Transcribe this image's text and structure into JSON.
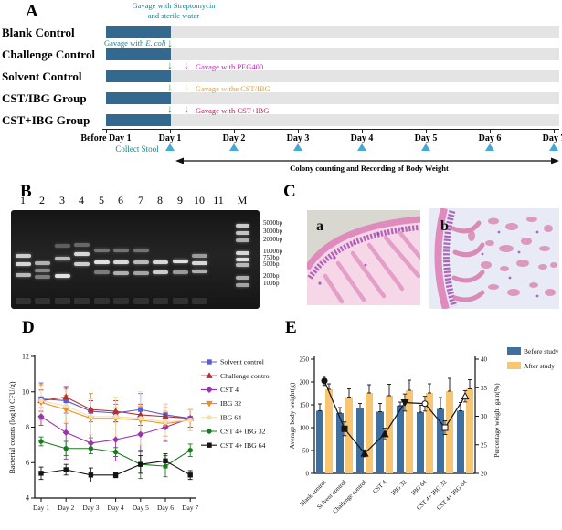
{
  "panelA": {
    "label": "A",
    "groups": [
      "Blank Control",
      "Challenge Control",
      "Solvent Control",
      "CST/IBG Group",
      "CST+IBG Group"
    ],
    "timeline_labels": [
      "Before Day 1",
      "Day 1",
      "Day 2",
      "Day 3",
      "Day 4",
      "Day 5",
      "Day 6",
      "Day 7"
    ],
    "ann_strep_1": "Gavage with Streptomycin",
    "ann_strep_2": "and sterile water",
    "ann_ecoli_prefix": "Gavage with ",
    "ann_ecoli_species": "E. coli",
    "ann_peg": "Gavage with PEG400",
    "ann_cst_slash": "Gavage withe CST/IBG",
    "ann_cst_plus": "Gavage with CST+IBG",
    "collect_stool": "Collect Stool",
    "bottom_caption": "Colony counting and Recording of Body Weight",
    "colors": {
      "bar": "#33688f",
      "track": "#e4e4e4",
      "teal": "#1b7f8c",
      "green": "#1fa03c",
      "magenta": "#c818c8",
      "orange": "#d8a23c",
      "crimson": "#c01456",
      "triangle": "#45a8d8"
    }
  },
  "panelB": {
    "label": "B",
    "lane_labels": [
      "1",
      "2",
      "3",
      "4",
      "5",
      "6",
      "7",
      "8",
      "9",
      "10",
      "11",
      "M"
    ],
    "lane_centers": [
      13,
      34,
      56,
      77,
      99,
      120,
      142,
      163,
      185,
      206,
      227,
      253
    ],
    "bands": [
      [
        [
          48,
          0.85
        ],
        [
          57,
          0.9
        ],
        [
          69,
          0.75
        ]
      ],
      [
        [
          56,
          0.7
        ],
        [
          64,
          0.5
        ],
        [
          71,
          0.45
        ]
      ],
      [
        [
          37,
          0.3
        ],
        [
          51,
          0.75
        ],
        [
          70,
          0.95
        ]
      ],
      [
        [
          36,
          0.35
        ],
        [
          46,
          0.9
        ],
        [
          57,
          0.85
        ]
      ],
      [
        [
          42,
          0.4
        ],
        [
          55,
          0.95
        ],
        [
          66,
          0.45
        ]
      ],
      [
        [
          42,
          0.4
        ],
        [
          55,
          0.9
        ],
        [
          67,
          0.7
        ]
      ],
      [
        [
          42,
          0.4
        ],
        [
          55,
          0.75
        ],
        [
          67,
          0.65
        ]
      ],
      [
        [
          55,
          0.9
        ],
        [
          66,
          0.85
        ]
      ],
      [
        [
          54,
          0.95
        ],
        [
          66,
          0.6
        ]
      ],
      [
        [
          48,
          0.6
        ],
        [
          56,
          0.9
        ],
        [
          65,
          0.7
        ]
      ],
      [],
      [
        [
          15,
          0.85
        ],
        [
          23,
          0.8
        ],
        [
          31,
          0.7
        ],
        [
          45,
          0.9
        ],
        [
          52,
          0.95
        ],
        [
          58,
          0.75
        ],
        [
          72,
          0.7
        ],
        [
          80,
          0.65
        ]
      ]
    ],
    "ladder_labels": [
      "5000bp",
      "3000bp",
      "2000bp",
      "1000bp",
      "750bp",
      "500bp",
      "200bp",
      "100bp"
    ],
    "ladder_label_tops": [
      240,
      249,
      258,
      271,
      278,
      285,
      298,
      306
    ]
  },
  "panelC": {
    "label": "C",
    "sub_a": "a",
    "sub_b": "b"
  },
  "panelD": {
    "label": "D"
  },
  "panelE": {
    "label": "E"
  },
  "chart_data": [
    {
      "panel": "D",
      "type": "line",
      "x_categories": [
        "Day 1",
        "Day 2",
        "Day 3",
        "Day 4",
        "Day 5",
        "Day 6",
        "Day 7"
      ],
      "ylabel": "Bacterial counts (log10 CFU/g)",
      "ylim": [
        4,
        12
      ],
      "yticks": [
        4,
        6,
        8,
        10,
        12
      ],
      "grid": false,
      "legend_position": "right",
      "series": [
        {
          "name": "Solvent control",
          "color": "#5b5bd6",
          "marker": "square",
          "values": [
            9.6,
            9.5,
            8.9,
            8.8,
            9.0,
            8.7,
            8.5
          ],
          "errors": [
            0.9,
            0.7,
            0.6,
            0.5,
            0.9,
            0.6,
            0.5
          ]
        },
        {
          "name": "Challenge control",
          "color": "#b03030",
          "marker": "triangle-up",
          "values": [
            9.5,
            9.7,
            9.0,
            8.9,
            8.7,
            8.6,
            8.5
          ],
          "errors": [
            0.6,
            0.6,
            0.5,
            0.6,
            0.6,
            0.5,
            0.5
          ]
        },
        {
          "name": "CST 4",
          "color": "#9a34ad",
          "marker": "diamond",
          "values": [
            8.6,
            7.7,
            7.1,
            7.3,
            7.6,
            8.0,
            8.5
          ],
          "errors": [
            0.5,
            1.5,
            0.3,
            1.2,
            1.0,
            0.8,
            0.5
          ]
        },
        {
          "name": "IBG 32",
          "color": "#f08c1e",
          "marker": "triangle-down",
          "values": [
            9.4,
            9.0,
            8.5,
            8.5,
            8.4,
            8.2,
            8.4
          ],
          "errors": [
            1.0,
            0.8,
            1.4,
            0.6,
            0.8,
            0.7,
            0.6
          ]
        },
        {
          "name": "IBG 64",
          "color": "#f2dfae",
          "marker": "circle",
          "values": [
            9.5,
            9.2,
            8.6,
            8.6,
            8.5,
            8.3,
            8.4
          ],
          "errors": [
            0.8,
            0.9,
            1.0,
            1.1,
            1.5,
            1.0,
            0.6
          ]
        },
        {
          "name": "CST 4+ IBG 32",
          "color": "#1a7a1f",
          "marker": "circle",
          "values": [
            7.2,
            6.8,
            6.8,
            6.6,
            5.9,
            5.8,
            6.7
          ],
          "errors": [
            0.25,
            0.4,
            0.3,
            0.25,
            0.8,
            0.6,
            0.35
          ]
        },
        {
          "name": "CST 4+ IBG 64",
          "color": "#141414",
          "marker": "square",
          "values": [
            5.4,
            5.6,
            5.3,
            5.3,
            5.9,
            6.1,
            5.3
          ],
          "errors": [
            0.35,
            0.3,
            0.4,
            0.15,
            0.5,
            0.4,
            0.25
          ]
        }
      ]
    },
    {
      "panel": "E",
      "type": "bar+line",
      "categories": [
        "Blank control",
        "Solvent control",
        "Challenge control",
        "CST 4",
        "IBG 32",
        "IBG 64",
        "CST 4+ IBG 32",
        "CST 4+ IBG 64"
      ],
      "left_ylabel": "Average body weight(g)",
      "left_ylim": [
        0,
        250
      ],
      "left_yticks": [
        0,
        50,
        100,
        150,
        200,
        250
      ],
      "right_ylabel": "Percentage weight gain(%)",
      "right_ylim": [
        20,
        40
      ],
      "right_yticks": [
        20,
        25,
        30,
        35,
        40
      ],
      "legend": [
        {
          "label": "Before study",
          "color": "#3f6f9f"
        },
        {
          "label": "After study",
          "color": "#f8c572"
        }
      ],
      "bars": {
        "before": {
          "values": [
            137,
            132,
            143,
            135,
            148,
            134,
            141,
            137
          ],
          "errors": [
            15,
            12,
            10,
            18,
            8,
            15,
            25,
            18
          ]
        },
        "after": {
          "values": [
            184,
            167,
            176,
            170,
            182,
            176,
            180,
            185
          ],
          "errors": [
            12,
            18,
            18,
            25,
            22,
            20,
            28,
            20
          ]
        }
      },
      "line": {
        "name": "Percentage weight gain",
        "color": "#141414",
        "values": [
          36.2,
          27.8,
          23.5,
          26.9,
          32.4,
          32.2,
          28.0,
          33.5
        ],
        "errors": [
          0.8,
          1.2,
          0.6,
          1.0,
          1.5,
          1.3,
          1.2,
          1.0
        ],
        "markers": [
          "circle-filled",
          "square-filled",
          "triangle-up-filled",
          "triangle-up-filled",
          "triangle-down-filled",
          "circle-open",
          "square-open",
          "triangle-up-open"
        ]
      }
    }
  ]
}
